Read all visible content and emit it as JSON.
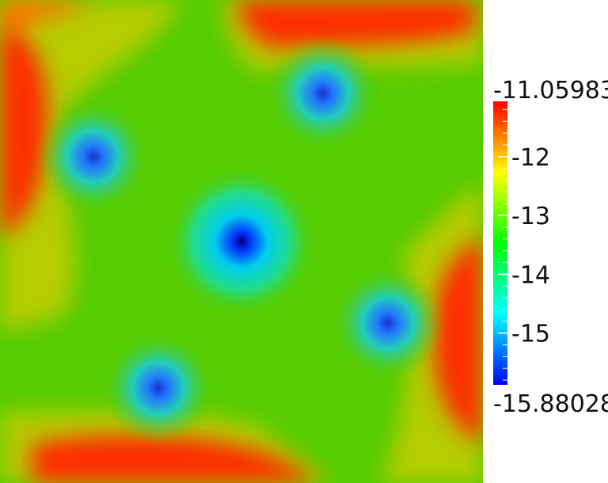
{
  "chart_data": {
    "type": "heatmap",
    "title": "",
    "xlabel": "",
    "ylabel": "",
    "colormap": [
      "#0000ff",
      "#00ffff",
      "#00ff00",
      "#ffff00",
      "#ff0000"
    ],
    "colorbar": {
      "min": -15.88028,
      "max": -11.05983,
      "min_label": "-15.88028",
      "max_label": "-11.05983",
      "tick_values": [
        -12,
        -13,
        -14,
        -15
      ],
      "tick_labels": [
        "-12",
        "-13",
        "-14",
        "-15"
      ]
    },
    "field_features": [
      {
        "name": "central minimum",
        "value": -15.88
      },
      {
        "name": "upper-left minimum",
        "value": -15.3
      },
      {
        "name": "upper-right minimum",
        "value": -15.3
      },
      {
        "name": "right minimum",
        "value": -15.3
      },
      {
        "name": "lower-left minimum",
        "value": -15.3
      },
      {
        "name": "background level",
        "value": -13.4
      },
      {
        "name": "edge maxima",
        "value": -11.06
      }
    ]
  }
}
